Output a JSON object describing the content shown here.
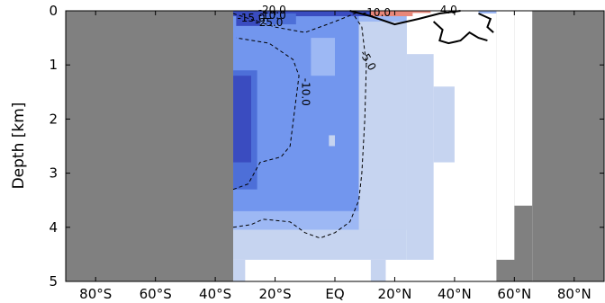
{
  "chart_data": {
    "type": "heatmap",
    "title": "",
    "ylabel": "Depth [km]",
    "xlabel": "",
    "x_range": [
      -90,
      90
    ],
    "y_range": [
      0,
      5
    ],
    "y_inverted": true,
    "x_ticks": [
      {
        "value": -80,
        "label": "80°S"
      },
      {
        "value": -60,
        "label": "60°S"
      },
      {
        "value": -40,
        "label": "40°S"
      },
      {
        "value": -20,
        "label": "20°S"
      },
      {
        "value": 0,
        "label": "EQ"
      },
      {
        "value": 20,
        "label": "20°N"
      },
      {
        "value": 40,
        "label": "40°N"
      },
      {
        "value": 60,
        "label": "60°N"
      },
      {
        "value": 80,
        "label": "80°N"
      }
    ],
    "y_ticks": [
      {
        "value": 0,
        "label": "0"
      },
      {
        "value": 1,
        "label": "1"
      },
      {
        "value": 2,
        "label": "2"
      },
      {
        "value": 3,
        "label": "3"
      },
      {
        "value": 4,
        "label": "4"
      },
      {
        "value": 5,
        "label": "5"
      }
    ],
    "colors": {
      "land": "#808080",
      "no_data": "#ffffff",
      "weak_negative": "#c6d4f0",
      "moderate_negative": "#9db8f4",
      "negative": "#7296ee",
      "strong_negative": "#4d6fd8",
      "very_strong_negative": "#3a4cc0",
      "positive": "#e8877a"
    },
    "masked_regions": [
      {
        "name": "antarctica-land",
        "lat": [
          -90,
          -34
        ],
        "depth": [
          0,
          5
        ]
      },
      {
        "name": "north-land",
        "lat": [
          66,
          90
        ],
        "depth": [
          0,
          5
        ]
      }
    ],
    "contour_labels": [
      "-5.0",
      "-10.0",
      "-10.0",
      "-15.0",
      "-20.0",
      "-25.0",
      "-10.0",
      "4.0"
    ]
  }
}
